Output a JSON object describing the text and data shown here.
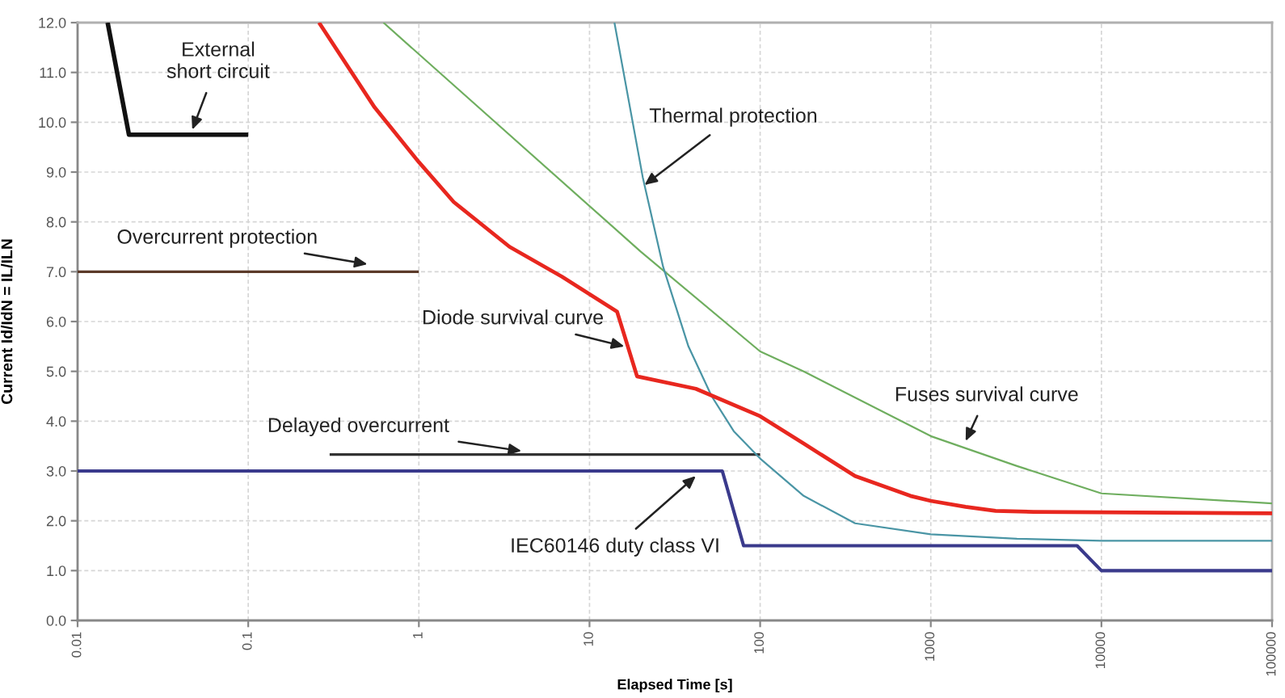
{
  "chart_data": {
    "type": "line",
    "xlabel": "Elapsed Time [s]",
    "ylabel": "Current Id/IdN = IL/ILN",
    "log": "x",
    "xlim": [
      0.01,
      100000
    ],
    "xticks": [
      0.01,
      0.1,
      1,
      10,
      100,
      1000,
      10000,
      100000
    ],
    "ylim": [
      0,
      12
    ],
    "yticks": [
      {
        "value": 0,
        "label": "0.0"
      },
      {
        "value": 1,
        "label": "1.0"
      },
      {
        "value": 2,
        "label": "2.0"
      },
      {
        "value": 3,
        "label": "3.0"
      },
      {
        "value": 4,
        "label": "4.0"
      },
      {
        "value": 5,
        "label": "5.0"
      },
      {
        "value": 6,
        "label": "6.0"
      },
      {
        "value": 7,
        "label": "7.0"
      },
      {
        "value": 8,
        "label": "8.0"
      },
      {
        "value": 9,
        "label": "9.0"
      },
      {
        "value": 10,
        "label": "10.0"
      },
      {
        "value": 11,
        "label": "11.0"
      },
      {
        "value": 12,
        "label": "12.0"
      }
    ],
    "grid": true,
    "series": [
      {
        "color": "#111111",
        "x": [
          0.015,
          0.02,
          0.1
        ],
        "values": [
          12,
          9.75,
          9.75
        ]
      },
      {
        "color": "#5b3a29",
        "x": [
          0.01,
          1
        ],
        "values": [
          7,
          7
        ]
      },
      {
        "color": "#333333",
        "x": [
          0.3,
          100
        ],
        "values": [
          3.33,
          3.33
        ]
      },
      {
        "color": "#3a3a8c",
        "x": [
          0.01,
          60,
          80,
          7200,
          10000,
          100000
        ],
        "values": [
          3,
          3,
          1.5,
          1.5,
          1,
          1
        ]
      },
      {
        "color": "#6fae5f",
        "x": [
          0.62,
          20,
          100,
          180,
          1000,
          3200,
          10000,
          100000
        ],
        "values": [
          12,
          7.4,
          5.4,
          5.0,
          3.7,
          3.1,
          2.55,
          2.35
        ]
      },
      {
        "color": "#4a95a5",
        "x": [
          14,
          20.5,
          27,
          38,
          52,
          70,
          100,
          180,
          360,
          1000,
          3200,
          10000,
          100000
        ],
        "values": [
          12,
          8.9,
          7.1,
          5.5,
          4.5,
          3.8,
          3.25,
          2.5,
          1.95,
          1.73,
          1.64,
          1.6,
          1.6
        ]
      },
      {
        "color": "#e8271f",
        "x": [
          0.26,
          0.55,
          1,
          1.6,
          3.4,
          6.9,
          14.5,
          19,
          42,
          100,
          180,
          360,
          760,
          1000,
          1600,
          2400,
          4000,
          100000
        ],
        "values": [
          12,
          10.3,
          9.2,
          8.4,
          7.5,
          6.9,
          6.2,
          4.9,
          4.65,
          4.1,
          3.55,
          2.9,
          2.5,
          2.4,
          2.28,
          2.2,
          2.18,
          2.15
        ]
      }
    ],
    "annotations": [
      {
        "text": "External\nshort circuit",
        "x": 0.047,
        "y": 9.85
      },
      {
        "text": "Thermal protection",
        "x": 21,
        "y": 8.74
      },
      {
        "text": "Overcurrent protection",
        "x": 0.5,
        "y": 7.15
      },
      {
        "text": "Diode survival curve",
        "x": 16,
        "y": 5.5
      },
      {
        "text": "Fuses survival curve",
        "x": 1600,
        "y": 3.6
      },
      {
        "text": "Delayed overcurrent",
        "x": 4,
        "y": 3.4
      },
      {
        "text": "IEC60146 duty class VI",
        "x": 42,
        "y": 2.9
      }
    ]
  }
}
